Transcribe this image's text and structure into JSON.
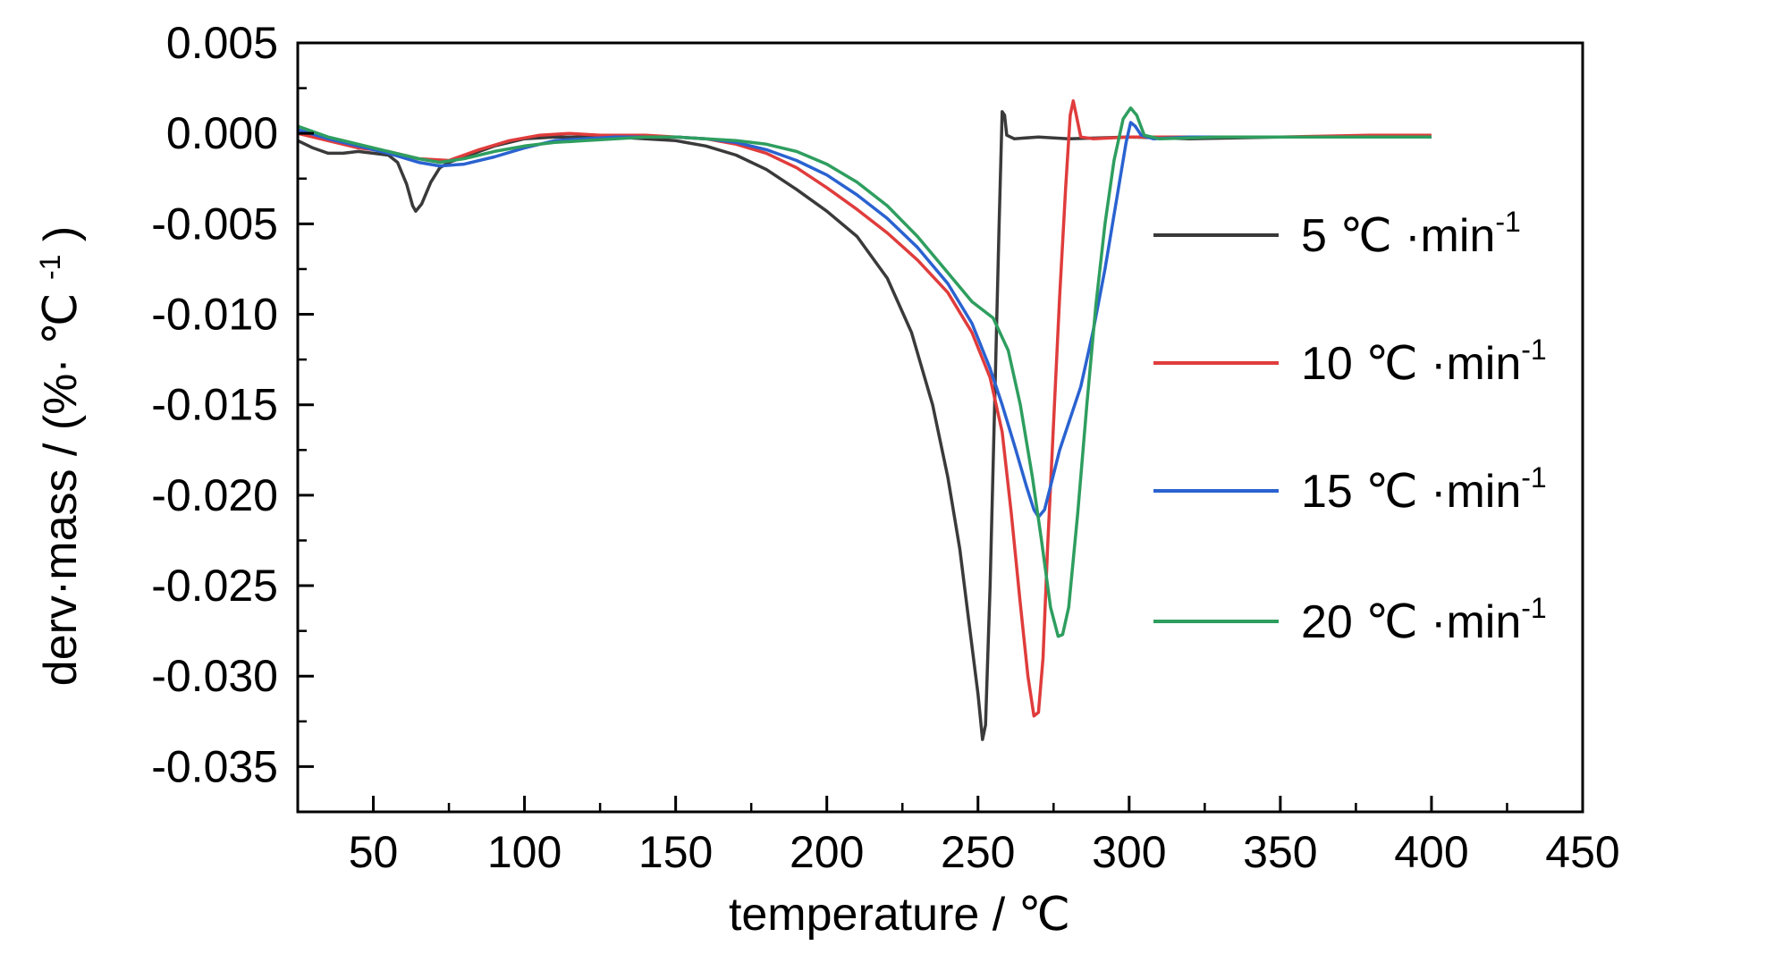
{
  "chart_data": {
    "type": "line",
    "title": "",
    "xlabel": "temperature / ℃",
    "ylabel": "derv·mass / (%· ℃⁻¹)",
    "ylabel_parts": {
      "main": "derv·mass / (%· ℃",
      "sup": "-1",
      "close": ")"
    },
    "xlim": [
      25,
      450
    ],
    "ylim": [
      -0.0375,
      0.005
    ],
    "x_ticks": [
      50,
      100,
      150,
      200,
      250,
      300,
      350,
      400,
      450
    ],
    "x_tick_labels": [
      "50",
      "100",
      "150",
      "200",
      "250",
      "300",
      "350",
      "400",
      "450"
    ],
    "y_ticks": [
      0.005,
      0.0,
      -0.005,
      -0.01,
      -0.015,
      -0.02,
      -0.025,
      -0.03,
      -0.035
    ],
    "y_tick_labels": [
      "0.005",
      "0.000",
      "-0.005",
      "-0.010",
      "-0.015",
      "-0.020",
      "-0.025",
      "-0.030",
      "-0.035"
    ],
    "grid": false,
    "legend_position": "right",
    "series": [
      {
        "name": "5 ℃ ·min",
        "name_sup": "-1",
        "color": "#3a3a3a",
        "points": [
          [
            25,
            -0.0004
          ],
          [
            30,
            -0.0008
          ],
          [
            35,
            -0.0011
          ],
          [
            40,
            -0.0011
          ],
          [
            45,
            -0.001
          ],
          [
            50,
            -0.0011
          ],
          [
            55,
            -0.0012
          ],
          [
            58,
            -0.0016
          ],
          [
            61,
            -0.0028
          ],
          [
            63,
            -0.004
          ],
          [
            64,
            -0.0043
          ],
          [
            66,
            -0.0039
          ],
          [
            69,
            -0.0027
          ],
          [
            72,
            -0.0019
          ],
          [
            75,
            -0.0016
          ],
          [
            80,
            -0.0013
          ],
          [
            90,
            -0.0007
          ],
          [
            100,
            -0.0003
          ],
          [
            110,
            -0.0002
          ],
          [
            120,
            -0.0002
          ],
          [
            130,
            -0.0002
          ],
          [
            140,
            -0.0003
          ],
          [
            150,
            -0.0004
          ],
          [
            160,
            -0.0007
          ],
          [
            170,
            -0.0012
          ],
          [
            180,
            -0.002
          ],
          [
            190,
            -0.0031
          ],
          [
            200,
            -0.0043
          ],
          [
            210,
            -0.0057
          ],
          [
            220,
            -0.008
          ],
          [
            228,
            -0.011
          ],
          [
            235,
            -0.015
          ],
          [
            240,
            -0.019
          ],
          [
            244,
            -0.023
          ],
          [
            247,
            -0.027
          ],
          [
            250,
            -0.031
          ],
          [
            251.5,
            -0.0335
          ],
          [
            252.5,
            -0.0327
          ],
          [
            254,
            -0.025
          ],
          [
            255.5,
            -0.015
          ],
          [
            257,
            -0.005
          ],
          [
            258,
            0.0012
          ],
          [
            258.8,
            0.001
          ],
          [
            259.5,
            -0.0001
          ],
          [
            262,
            -0.0003
          ],
          [
            270,
            -0.0002
          ],
          [
            280,
            -0.0003
          ],
          [
            300,
            -0.0002
          ],
          [
            320,
            -0.0003
          ],
          [
            350,
            -0.0002
          ],
          [
            380,
            -0.0002
          ],
          [
            400,
            -0.0002
          ]
        ]
      },
      {
        "name": "10 ℃ ·min",
        "name_sup": "-1",
        "color": "#e03c3c",
        "points": [
          [
            25,
            0.0
          ],
          [
            35,
            -0.0004
          ],
          [
            45,
            -0.0008
          ],
          [
            55,
            -0.001
          ],
          [
            65,
            -0.0014
          ],
          [
            75,
            -0.0015
          ],
          [
            85,
            -0.0009
          ],
          [
            95,
            -0.0004
          ],
          [
            105,
            -0.0001
          ],
          [
            115,
            0.0
          ],
          [
            125,
            -0.0001
          ],
          [
            140,
            -0.0001
          ],
          [
            150,
            -0.0002
          ],
          [
            160,
            -0.0003
          ],
          [
            170,
            -0.0006
          ],
          [
            180,
            -0.0011
          ],
          [
            190,
            -0.0019
          ],
          [
            200,
            -0.003
          ],
          [
            210,
            -0.0042
          ],
          [
            220,
            -0.0055
          ],
          [
            230,
            -0.007
          ],
          [
            240,
            -0.0088
          ],
          [
            248,
            -0.011
          ],
          [
            254,
            -0.0135
          ],
          [
            258,
            -0.0165
          ],
          [
            261,
            -0.021
          ],
          [
            264,
            -0.026
          ],
          [
            266.5,
            -0.03
          ],
          [
            268.5,
            -0.0322
          ],
          [
            270,
            -0.032
          ],
          [
            271.5,
            -0.029
          ],
          [
            273,
            -0.023
          ],
          [
            275,
            -0.016
          ],
          [
            277,
            -0.009
          ],
          [
            279,
            -0.003
          ],
          [
            280.5,
            0.001
          ],
          [
            281.5,
            0.0018
          ],
          [
            282.5,
            0.001
          ],
          [
            284,
            -0.0002
          ],
          [
            288,
            -0.0003
          ],
          [
            300,
            -0.0002
          ],
          [
            320,
            -0.0002
          ],
          [
            350,
            -0.0002
          ],
          [
            380,
            -0.0001
          ],
          [
            400,
            -0.0001
          ]
        ]
      },
      {
        "name": "15 ℃ ·min",
        "name_sup": "-1",
        "color": "#2a62d0",
        "points": [
          [
            25,
            0.0002
          ],
          [
            35,
            -0.0003
          ],
          [
            45,
            -0.0007
          ],
          [
            55,
            -0.0011
          ],
          [
            65,
            -0.0016
          ],
          [
            72,
            -0.0018
          ],
          [
            80,
            -0.0017
          ],
          [
            90,
            -0.0013
          ],
          [
            100,
            -0.0008
          ],
          [
            110,
            -0.0004
          ],
          [
            120,
            -0.0003
          ],
          [
            130,
            -0.0002
          ],
          [
            150,
            -0.0002
          ],
          [
            160,
            -0.0003
          ],
          [
            170,
            -0.0005
          ],
          [
            180,
            -0.0009
          ],
          [
            190,
            -0.0015
          ],
          [
            200,
            -0.0023
          ],
          [
            210,
            -0.0034
          ],
          [
            220,
            -0.0047
          ],
          [
            230,
            -0.0063
          ],
          [
            240,
            -0.0083
          ],
          [
            248,
            -0.0105
          ],
          [
            254,
            -0.013
          ],
          [
            258,
            -0.015
          ],
          [
            262,
            -0.0172
          ],
          [
            266,
            -0.0195
          ],
          [
            268.5,
            -0.0208
          ],
          [
            270,
            -0.0212
          ],
          [
            272,
            -0.0208
          ],
          [
            274,
            -0.0195
          ],
          [
            277,
            -0.0175
          ],
          [
            280,
            -0.016
          ],
          [
            284,
            -0.014
          ],
          [
            288,
            -0.011
          ],
          [
            292,
            -0.0075
          ],
          [
            296,
            -0.0035
          ],
          [
            299,
            -0.0005
          ],
          [
            300.5,
            0.0006
          ],
          [
            302,
            0.0004
          ],
          [
            304,
            -0.0001
          ],
          [
            308,
            -0.0003
          ],
          [
            320,
            -0.0002
          ],
          [
            350,
            -0.0002
          ],
          [
            380,
            -0.0002
          ],
          [
            400,
            -0.0002
          ]
        ]
      },
      {
        "name": "20 ℃ ·min",
        "name_sup": "-1",
        "color": "#2e9e5f",
        "points": [
          [
            25,
            0.0004
          ],
          [
            35,
            -0.0002
          ],
          [
            45,
            -0.0006
          ],
          [
            55,
            -0.001
          ],
          [
            65,
            -0.0014
          ],
          [
            72,
            -0.0016
          ],
          [
            80,
            -0.0014
          ],
          [
            90,
            -0.001
          ],
          [
            100,
            -0.0007
          ],
          [
            110,
            -0.0005
          ],
          [
            120,
            -0.0004
          ],
          [
            130,
            -0.0003
          ],
          [
            140,
            -0.0002
          ],
          [
            150,
            -0.0002
          ],
          [
            160,
            -0.0003
          ],
          [
            170,
            -0.0004
          ],
          [
            180,
            -0.0006
          ],
          [
            190,
            -0.001
          ],
          [
            200,
            -0.0017
          ],
          [
            210,
            -0.0027
          ],
          [
            220,
            -0.004
          ],
          [
            230,
            -0.0057
          ],
          [
            240,
            -0.0077
          ],
          [
            248,
            -0.0093
          ],
          [
            255,
            -0.0102
          ],
          [
            260,
            -0.012
          ],
          [
            264,
            -0.015
          ],
          [
            268,
            -0.019
          ],
          [
            271,
            -0.0225
          ],
          [
            274,
            -0.0262
          ],
          [
            276.5,
            -0.0278
          ],
          [
            278,
            -0.0277
          ],
          [
            280,
            -0.0262
          ],
          [
            283,
            -0.021
          ],
          [
            286,
            -0.015
          ],
          [
            289,
            -0.0095
          ],
          [
            292,
            -0.005
          ],
          [
            295,
            -0.0015
          ],
          [
            298,
            0.0008
          ],
          [
            300.5,
            0.0014
          ],
          [
            302.5,
            0.001
          ],
          [
            305,
            -0.0001
          ],
          [
            310,
            -0.0003
          ],
          [
            330,
            -0.0002
          ],
          [
            360,
            -0.0002
          ],
          [
            400,
            -0.0002
          ]
        ]
      }
    ]
  }
}
